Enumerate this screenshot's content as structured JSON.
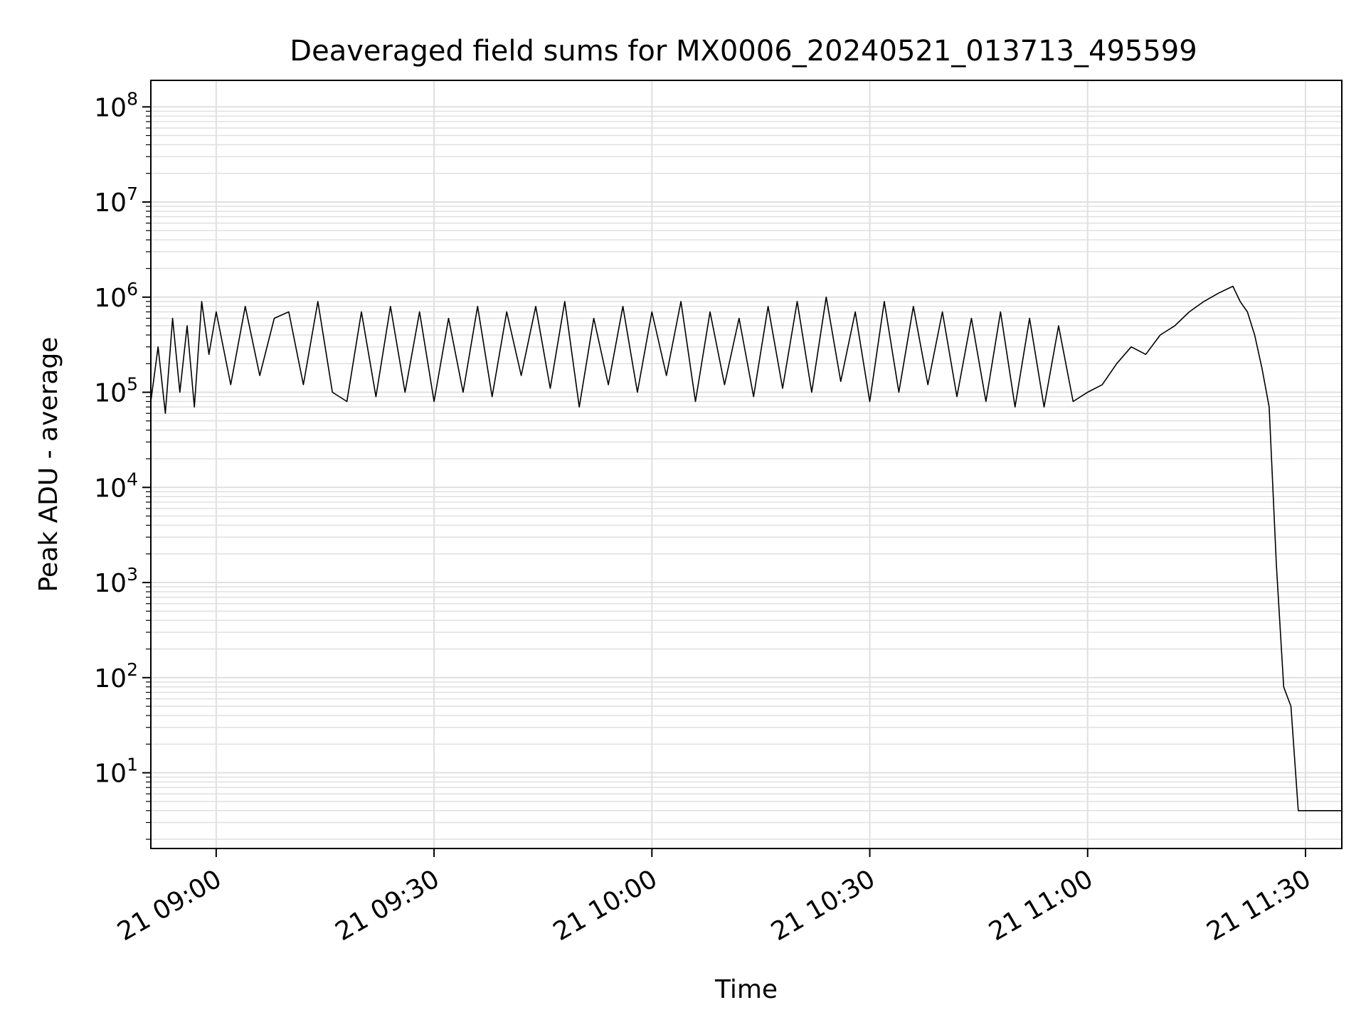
{
  "chart_data": {
    "type": "line",
    "title": "Deaveraged field sums for MX0006_20240521_013713_495599",
    "xlabel": "Time",
    "ylabel": "Peak ADU - average",
    "x_range": [
      "21 08:51",
      "21 11:35"
    ],
    "y_scale": "log",
    "y_range": [
      1.6,
      190000000
    ],
    "grid": true,
    "legend": "none",
    "line_color": "#000000",
    "grid_color": "#e0e0e0",
    "x_ticks": [
      {
        "value": "21 09:00",
        "label": "21 09:00"
      },
      {
        "value": "21 09:30",
        "label": "21 09:30"
      },
      {
        "value": "21 10:00",
        "label": "21 10:00"
      },
      {
        "value": "21 10:30",
        "label": "21 10:30"
      },
      {
        "value": "21 11:00",
        "label": "21 11:00"
      },
      {
        "value": "21 11:30",
        "label": "21 11:30"
      }
    ],
    "y_ticks": [
      {
        "value": 10,
        "base": "10",
        "exp": "1"
      },
      {
        "value": 100,
        "base": "10",
        "exp": "2"
      },
      {
        "value": 1000,
        "base": "10",
        "exp": "3"
      },
      {
        "value": 10000,
        "base": "10",
        "exp": "4"
      },
      {
        "value": 100000,
        "base": "10",
        "exp": "5"
      },
      {
        "value": 1000000,
        "base": "10",
        "exp": "6"
      },
      {
        "value": 10000000,
        "base": "10",
        "exp": "7"
      },
      {
        "value": 100000000,
        "base": "10",
        "exp": "8"
      }
    ],
    "series": [
      {
        "x": [
          "21 08:51",
          "21 08:52",
          "21 08:53",
          "21 08:54",
          "21 08:55",
          "21 08:56",
          "21 08:57",
          "21 08:58",
          "21 08:59",
          "21 09:00",
          "21 09:02",
          "21 09:04",
          "21 09:06",
          "21 09:08",
          "21 09:10",
          "21 09:12",
          "21 09:14",
          "21 09:16",
          "21 09:18",
          "21 09:20",
          "21 09:22",
          "21 09:24",
          "21 09:26",
          "21 09:28",
          "21 09:30",
          "21 09:32",
          "21 09:34",
          "21 09:36",
          "21 09:38",
          "21 09:40",
          "21 09:42",
          "21 09:44",
          "21 09:46",
          "21 09:48",
          "21 09:50",
          "21 09:52",
          "21 09:54",
          "21 09:56",
          "21 09:58",
          "21 10:00",
          "21 10:02",
          "21 10:04",
          "21 10:06",
          "21 10:08",
          "21 10:10",
          "21 10:12",
          "21 10:14",
          "21 10:16",
          "21 10:18",
          "21 10:20",
          "21 10:22",
          "21 10:24",
          "21 10:26",
          "21 10:28",
          "21 10:30",
          "21 10:32",
          "21 10:34",
          "21 10:36",
          "21 10:38",
          "21 10:40",
          "21 10:42",
          "21 10:44",
          "21 10:46",
          "21 10:48",
          "21 10:50",
          "21 10:52",
          "21 10:54",
          "21 10:56",
          "21 10:58",
          "21 11:00",
          "21 11:02",
          "21 11:04",
          "21 11:06",
          "21 11:08",
          "21 11:10",
          "21 11:12",
          "21 11:14",
          "21 11:16",
          "21 11:18",
          "21 11:20",
          "21 11:21",
          "21 11:22",
          "21 11:23",
          "21 11:24",
          "21 11:25",
          "21 11:26",
          "21 11:27",
          "21 11:28",
          "21 11:29",
          "21 11:30",
          "21 11:31",
          "21 11:32",
          "21 11:33",
          "21 11:34",
          "21 11:35"
        ],
        "y": [
          80000,
          300000,
          60000,
          600000,
          100000,
          500000,
          70000,
          900000,
          250000,
          700000,
          120000,
          800000,
          150000,
          600000,
          700000,
          120000,
          900000,
          100000,
          80000,
          700000,
          90000,
          800000,
          100000,
          700000,
          80000,
          600000,
          100000,
          800000,
          90000,
          700000,
          150000,
          800000,
          110000,
          900000,
          70000,
          600000,
          120000,
          800000,
          100000,
          700000,
          150000,
          900000,
          80000,
          700000,
          120000,
          600000,
          90000,
          800000,
          110000,
          900000,
          100000,
          1000000,
          130000,
          700000,
          80000,
          900000,
          100000,
          800000,
          120000,
          700000,
          90000,
          600000,
          80000,
          700000,
          70000,
          600000,
          70000,
          500000,
          80000,
          100000,
          120000,
          200000,
          300000,
          250000,
          400000,
          500000,
          700000,
          900000,
          1100000,
          1300000,
          900000,
          700000,
          400000,
          180000,
          70000,
          1500,
          80,
          50,
          4,
          4,
          4,
          4,
          4,
          4,
          4
        ]
      }
    ]
  }
}
